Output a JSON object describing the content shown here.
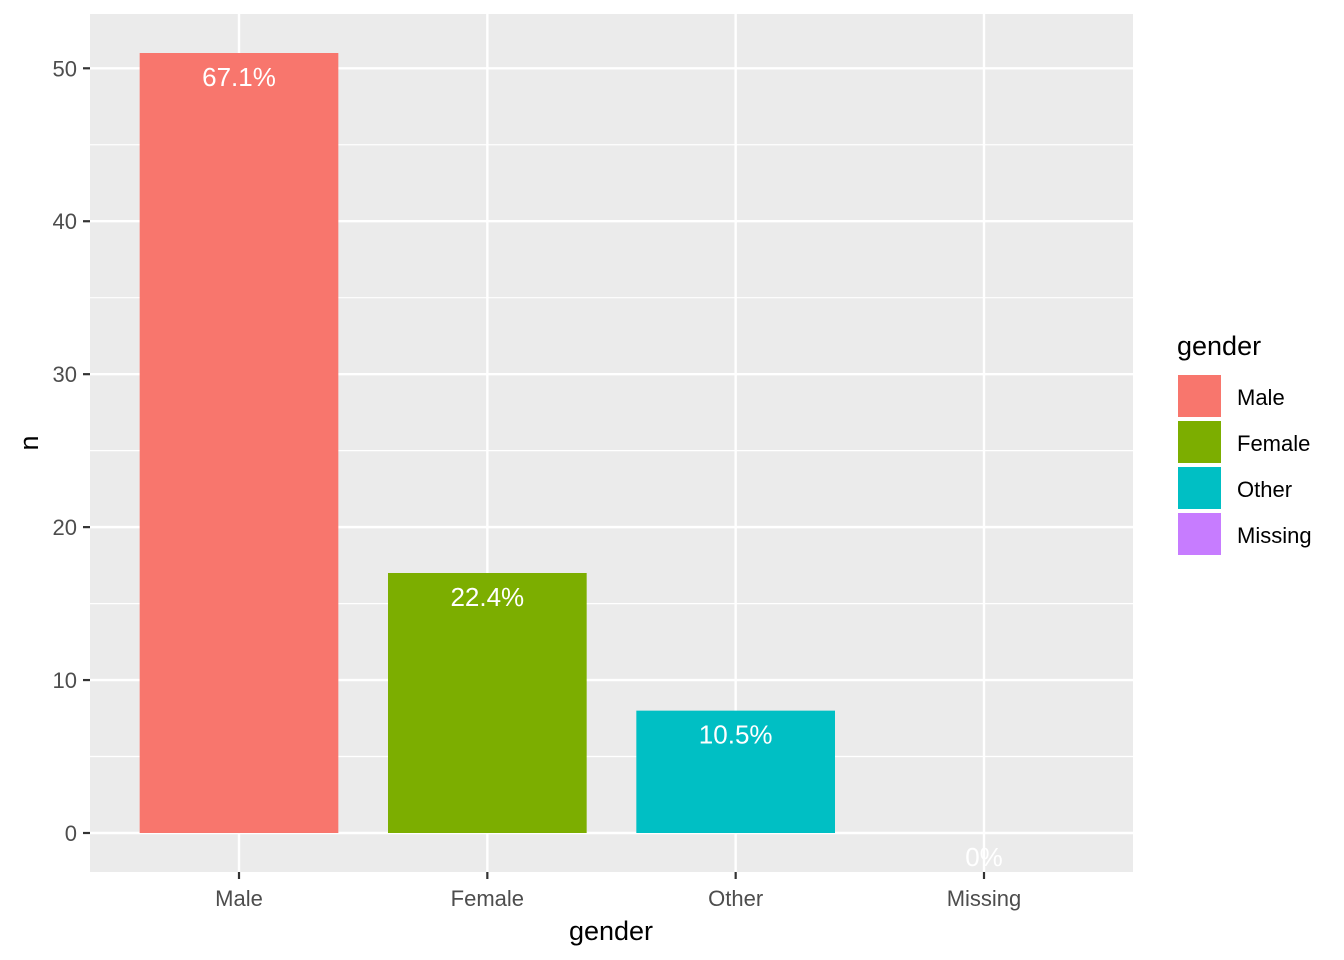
{
  "chart_data": {
    "type": "bar",
    "categories": [
      "Male",
      "Female",
      "Other",
      "Missing"
    ],
    "values": [
      51,
      17,
      8,
      0
    ],
    "bar_labels": [
      "67.1%",
      "22.4%",
      "10.5%",
      "0%"
    ],
    "colors": [
      "#F8766D",
      "#7CAE00",
      "#00BFC4",
      "#C77CFF"
    ],
    "xlabel": "gender",
    "ylabel": "n",
    "ylim": [
      -2.55,
      53.55
    ],
    "yticks": [
      0,
      10,
      20,
      30,
      40,
      50
    ],
    "ytick_labels": [
      "0",
      "10",
      "20",
      "30",
      "40",
      "50"
    ],
    "grid": true,
    "panel_background": "#EBEBEB",
    "legend": {
      "title": "gender",
      "position": "right",
      "entries": [
        "Male",
        "Female",
        "Other",
        "Missing"
      ]
    }
  }
}
